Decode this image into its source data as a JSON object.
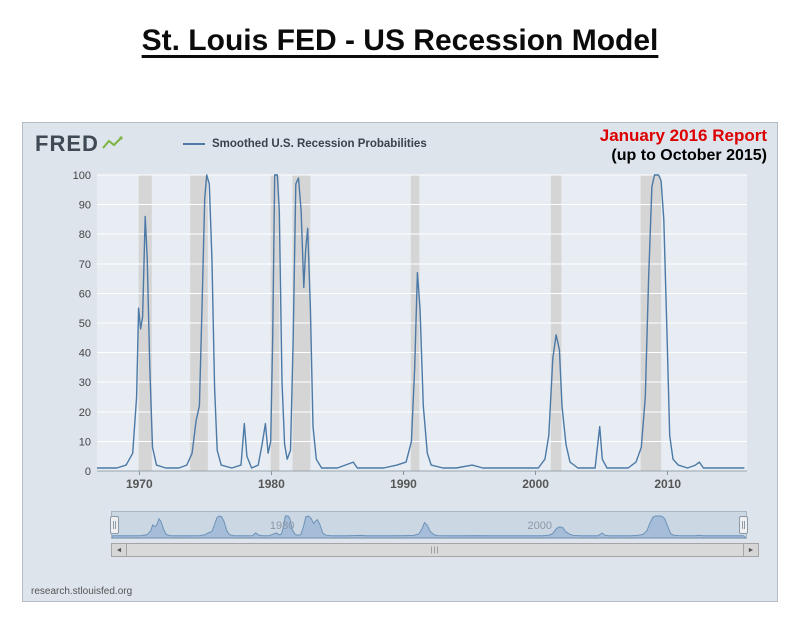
{
  "title": "St. Louis FED - US Recession Model",
  "report": {
    "title": "January 2016 Report",
    "subtitle": "(up to October 2015)"
  },
  "header": {
    "logo_text": "FRED",
    "legend_label": "Smoothed U.S. Recession Probabilities"
  },
  "source": "research.stlouisfed.org",
  "scrollbar": {
    "left_arrow": "◄",
    "right_arrow": "►",
    "grip": "|||"
  },
  "colors": {
    "line": "#4c79a6",
    "plot_bg": "#e7edf3",
    "recession_band": "#d5d5d5",
    "nav_area_fill": "#9db9d6",
    "nav_area_stroke": "#6d93b8",
    "report_red": "#dd0000"
  },
  "chart_data": {
    "type": "line",
    "title": "Smoothed U.S. Recession Probabilities",
    "xlabel": "",
    "ylabel": "",
    "xlim": [
      1966.8,
      2016
    ],
    "ylim": [
      0,
      100
    ],
    "x_ticks": [
      1970,
      1980,
      1990,
      2000,
      2010
    ],
    "y_ticks": [
      0,
      10,
      20,
      30,
      40,
      50,
      60,
      70,
      80,
      90,
      100
    ],
    "grid": "horizontal-white",
    "legend_position": "top-left-header",
    "recession_bands": [
      [
        1969.95,
        1970.95
      ],
      [
        1973.85,
        1975.2
      ],
      [
        1979.95,
        1980.6
      ],
      [
        1981.6,
        1982.95
      ],
      [
        1990.55,
        1991.2
      ],
      [
        2001.15,
        2001.95
      ],
      [
        2007.95,
        2009.5
      ]
    ],
    "series": [
      {
        "name": "Smoothed U.S. Recession Probabilities",
        "points": [
          [
            1966.8,
            1
          ],
          [
            1967.5,
            1
          ],
          [
            1968.3,
            1
          ],
          [
            1969.0,
            2
          ],
          [
            1969.5,
            6
          ],
          [
            1969.8,
            25
          ],
          [
            1969.95,
            55
          ],
          [
            1970.1,
            48
          ],
          [
            1970.25,
            52
          ],
          [
            1970.45,
            86
          ],
          [
            1970.6,
            72
          ],
          [
            1970.8,
            35
          ],
          [
            1971.0,
            8
          ],
          [
            1971.3,
            2
          ],
          [
            1972.0,
            1
          ],
          [
            1973.0,
            1
          ],
          [
            1973.6,
            2
          ],
          [
            1974.0,
            6
          ],
          [
            1974.3,
            17
          ],
          [
            1974.55,
            22
          ],
          [
            1974.75,
            55
          ],
          [
            1974.95,
            92
          ],
          [
            1975.1,
            100
          ],
          [
            1975.3,
            97
          ],
          [
            1975.5,
            72
          ],
          [
            1975.7,
            28
          ],
          [
            1975.9,
            7
          ],
          [
            1976.2,
            2
          ],
          [
            1977.0,
            1
          ],
          [
            1977.7,
            2
          ],
          [
            1977.95,
            16
          ],
          [
            1978.15,
            5
          ],
          [
            1978.5,
            1
          ],
          [
            1979.0,
            2
          ],
          [
            1979.3,
            9
          ],
          [
            1979.55,
            16
          ],
          [
            1979.75,
            6
          ],
          [
            1979.95,
            10
          ],
          [
            1980.1,
            45
          ],
          [
            1980.25,
            100
          ],
          [
            1980.45,
            100
          ],
          [
            1980.6,
            88
          ],
          [
            1980.8,
            30
          ],
          [
            1981.0,
            9
          ],
          [
            1981.2,
            4
          ],
          [
            1981.45,
            7
          ],
          [
            1981.65,
            45
          ],
          [
            1981.85,
            97
          ],
          [
            1982.05,
            99
          ],
          [
            1982.25,
            88
          ],
          [
            1982.45,
            62
          ],
          [
            1982.6,
            75
          ],
          [
            1982.75,
            82
          ],
          [
            1982.95,
            55
          ],
          [
            1983.15,
            15
          ],
          [
            1983.4,
            4
          ],
          [
            1983.8,
            1
          ],
          [
            1985.0,
            1
          ],
          [
            1986.2,
            3
          ],
          [
            1986.5,
            1
          ],
          [
            1987.5,
            1
          ],
          [
            1988.5,
            1
          ],
          [
            1989.5,
            2
          ],
          [
            1990.2,
            3
          ],
          [
            1990.6,
            10
          ],
          [
            1990.85,
            35
          ],
          [
            1991.05,
            67
          ],
          [
            1991.25,
            55
          ],
          [
            1991.5,
            22
          ],
          [
            1991.8,
            6
          ],
          [
            1992.1,
            2
          ],
          [
            1993.0,
            1
          ],
          [
            1994.0,
            1
          ],
          [
            1995.2,
            2
          ],
          [
            1996.0,
            1
          ],
          [
            1997.0,
            1
          ],
          [
            1998.0,
            1
          ],
          [
            1999.0,
            1
          ],
          [
            2000.2,
            1
          ],
          [
            2000.7,
            4
          ],
          [
            2001.0,
            12
          ],
          [
            2001.3,
            38
          ],
          [
            2001.55,
            46
          ],
          [
            2001.8,
            41
          ],
          [
            2002.0,
            22
          ],
          [
            2002.3,
            9
          ],
          [
            2002.6,
            3
          ],
          [
            2003.2,
            1
          ],
          [
            2004.0,
            1
          ],
          [
            2004.5,
            1
          ],
          [
            2004.85,
            15
          ],
          [
            2005.05,
            4
          ],
          [
            2005.4,
            1
          ],
          [
            2006.2,
            1
          ],
          [
            2007.0,
            1
          ],
          [
            2007.6,
            3
          ],
          [
            2008.0,
            8
          ],
          [
            2008.3,
            25
          ],
          [
            2008.55,
            65
          ],
          [
            2008.8,
            96
          ],
          [
            2009.0,
            100
          ],
          [
            2009.3,
            100
          ],
          [
            2009.5,
            98
          ],
          [
            2009.7,
            85
          ],
          [
            2009.95,
            45
          ],
          [
            2010.15,
            12
          ],
          [
            2010.4,
            4
          ],
          [
            2010.8,
            2
          ],
          [
            2011.5,
            1
          ],
          [
            2012.1,
            2
          ],
          [
            2012.4,
            3
          ],
          [
            2012.7,
            1
          ],
          [
            2013.5,
            1
          ],
          [
            2014.5,
            1
          ],
          [
            2015.8,
            1
          ]
        ]
      }
    ],
    "navigator": {
      "labels": [
        {
          "text": "1980",
          "year": 1980
        },
        {
          "text": "2000",
          "year": 2000
        }
      ]
    }
  }
}
